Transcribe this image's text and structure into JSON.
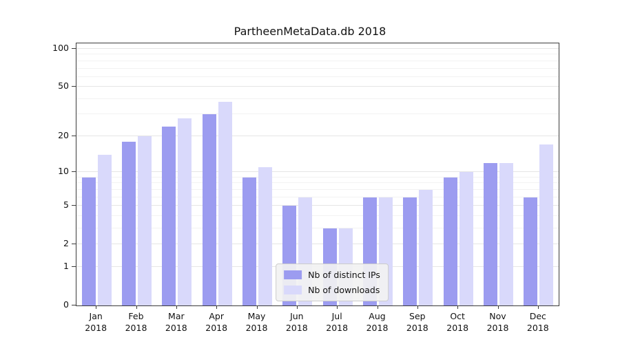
{
  "figure": {
    "title": "PartheenMetaData.db 2018",
    "background": "#ffffff"
  },
  "chart_data": {
    "type": "bar",
    "title": "PartheenMetaData.db 2018",
    "categories": [
      "Jan",
      "Feb",
      "Mar",
      "Apr",
      "May",
      "Jun",
      "Jul",
      "Aug",
      "Sep",
      "Oct",
      "Nov",
      "Dec"
    ],
    "year": "2018",
    "series": [
      {
        "name": "Nb of distinct IPs",
        "color": "#9c9cf0",
        "values": [
          9,
          18,
          24,
          30,
          9,
          5,
          3,
          6,
          6,
          9,
          12,
          6
        ]
      },
      {
        "name": "Nb of downloads",
        "color": "#d9d9fb",
        "values": [
          14,
          20,
          28,
          38,
          11,
          6,
          3,
          6,
          7,
          10,
          12,
          17
        ]
      }
    ],
    "xlabel": "",
    "ylabel": "",
    "y_scale": "log1p",
    "y_max": 100,
    "ylim": [
      0,
      100
    ],
    "y_ticks": [
      0,
      1,
      2,
      5,
      10,
      20,
      50,
      100
    ],
    "y_minor_ticks": [
      3,
      4,
      6,
      7,
      8,
      9,
      30,
      40,
      60,
      70,
      80,
      90
    ],
    "grid": "horizontal",
    "legend_position": "lower center"
  },
  "colors": {
    "grid_major": "#e5e5e5",
    "grid_minor": "#f2f2f2",
    "axis_border": "#3a3a3a",
    "text": "#111111",
    "legend_bg": "rgba(242,242,242,0.92)",
    "legend_border": "#cccccc"
  }
}
